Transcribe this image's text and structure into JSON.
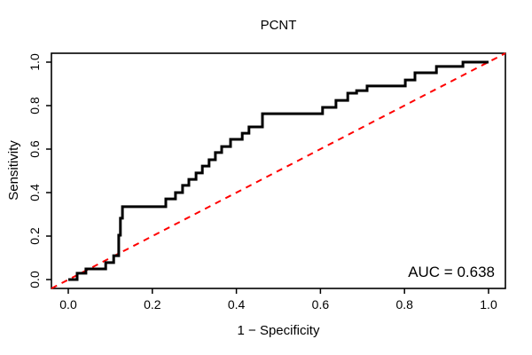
{
  "figure": {
    "background": "#FFFFFF",
    "plot_background": "#FFFFFF"
  },
  "chart_data": {
    "type": "line",
    "subtype": "roc-step-curve",
    "title": "PCNT",
    "xlabel": "1 − Specificity",
    "ylabel": "Sensitivity",
    "xlim": [
      0,
      1
    ],
    "ylim": [
      0,
      1
    ],
    "x_ticks": [
      0,
      0.2,
      0.4,
      0.6,
      0.8,
      1.0
    ],
    "y_ticks": [
      0,
      0.2,
      0.4,
      0.6,
      0.8,
      1.0
    ],
    "x_tick_labels": [
      "0.0",
      "0.2",
      "0.4",
      "0.6",
      "0.8",
      "1.0"
    ],
    "y_tick_labels": [
      "0.0",
      "0.2",
      "0.4",
      "0.6",
      "0.8",
      "1.0"
    ],
    "grid": false,
    "legend": "none",
    "auc": 0.638,
    "annotation": {
      "text": "AUC = 0.638",
      "position": "bottom-right-inside"
    },
    "series": [
      {
        "name": "ROC curve",
        "style": "step",
        "color": "#000000",
        "line_width": 3,
        "points": [
          [
            0.0,
            0.0
          ],
          [
            0.021,
            0.0
          ],
          [
            0.021,
            0.029
          ],
          [
            0.042,
            0.029
          ],
          [
            0.042,
            0.049
          ],
          [
            0.089,
            0.049
          ],
          [
            0.089,
            0.078
          ],
          [
            0.108,
            0.078
          ],
          [
            0.108,
            0.11
          ],
          [
            0.12,
            0.11
          ],
          [
            0.12,
            0.204
          ],
          [
            0.124,
            0.204
          ],
          [
            0.124,
            0.282
          ],
          [
            0.129,
            0.282
          ],
          [
            0.129,
            0.335
          ],
          [
            0.232,
            0.335
          ],
          [
            0.232,
            0.371
          ],
          [
            0.255,
            0.371
          ],
          [
            0.255,
            0.4
          ],
          [
            0.272,
            0.4
          ],
          [
            0.272,
            0.433
          ],
          [
            0.287,
            0.433
          ],
          [
            0.287,
            0.461
          ],
          [
            0.304,
            0.461
          ],
          [
            0.304,
            0.49
          ],
          [
            0.319,
            0.49
          ],
          [
            0.319,
            0.522
          ],
          [
            0.335,
            0.522
          ],
          [
            0.335,
            0.551
          ],
          [
            0.35,
            0.551
          ],
          [
            0.35,
            0.584
          ],
          [
            0.365,
            0.584
          ],
          [
            0.365,
            0.612
          ],
          [
            0.386,
            0.612
          ],
          [
            0.386,
            0.645
          ],
          [
            0.414,
            0.645
          ],
          [
            0.414,
            0.673
          ],
          [
            0.43,
            0.673
          ],
          [
            0.43,
            0.702
          ],
          [
            0.462,
            0.702
          ],
          [
            0.462,
            0.763
          ],
          [
            0.605,
            0.763
          ],
          [
            0.605,
            0.792
          ],
          [
            0.637,
            0.792
          ],
          [
            0.637,
            0.824
          ],
          [
            0.665,
            0.824
          ],
          [
            0.665,
            0.857
          ],
          [
            0.686,
            0.857
          ],
          [
            0.686,
            0.869
          ],
          [
            0.711,
            0.869
          ],
          [
            0.711,
            0.89
          ],
          [
            0.802,
            0.89
          ],
          [
            0.802,
            0.918
          ],
          [
            0.825,
            0.918
          ],
          [
            0.825,
            0.951
          ],
          [
            0.876,
            0.951
          ],
          [
            0.876,
            0.98
          ],
          [
            0.939,
            0.98
          ],
          [
            0.939,
            1.0
          ],
          [
            1.0,
            1.0
          ]
        ]
      },
      {
        "name": "Chance line (y = x)",
        "style": "dashed",
        "color": "#FF0000",
        "line_width": 2,
        "points": [
          [
            0,
            0
          ],
          [
            1,
            1
          ]
        ]
      }
    ]
  }
}
